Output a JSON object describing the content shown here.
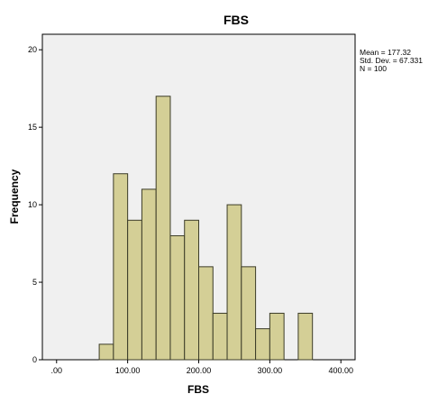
{
  "chart_data": {
    "type": "bar",
    "title": "FBS",
    "xlabel": "FBS",
    "ylabel": "Frequency",
    "xlim": [
      -20,
      420
    ],
    "ylim": [
      0,
      21
    ],
    "x_ticks": [
      0,
      100,
      200,
      300,
      400
    ],
    "x_tick_labels": [
      ".00",
      "100.00",
      "200.00",
      "300.00",
      "400.00"
    ],
    "y_ticks": [
      0,
      5,
      10,
      15,
      20
    ],
    "y_tick_labels": [
      "0",
      "5",
      "10",
      "15",
      "20"
    ],
    "bin_width": 20,
    "bins": [
      {
        "start": 60,
        "end": 80,
        "count": 1
      },
      {
        "start": 80,
        "end": 100,
        "count": 12
      },
      {
        "start": 100,
        "end": 120,
        "count": 9
      },
      {
        "start": 120,
        "end": 140,
        "count": 11
      },
      {
        "start": 140,
        "end": 160,
        "count": 17
      },
      {
        "start": 160,
        "end": 180,
        "count": 8
      },
      {
        "start": 180,
        "end": 200,
        "count": 9
      },
      {
        "start": 200,
        "end": 220,
        "count": 6
      },
      {
        "start": 220,
        "end": 240,
        "count": 3
      },
      {
        "start": 240,
        "end": 260,
        "count": 10
      },
      {
        "start": 260,
        "end": 280,
        "count": 6
      },
      {
        "start": 280,
        "end": 300,
        "count": 2
      },
      {
        "start": 300,
        "end": 320,
        "count": 3
      },
      {
        "start": 340,
        "end": 360,
        "count": 3
      }
    ],
    "grid": false,
    "bar_color": "#d4cf96",
    "bar_edge_color": "#3c3c28",
    "plot_background": "#f0f0f0",
    "stats": [
      "Mean = 177.32",
      "Std. Dev. = 67.331",
      "N = 100"
    ]
  }
}
